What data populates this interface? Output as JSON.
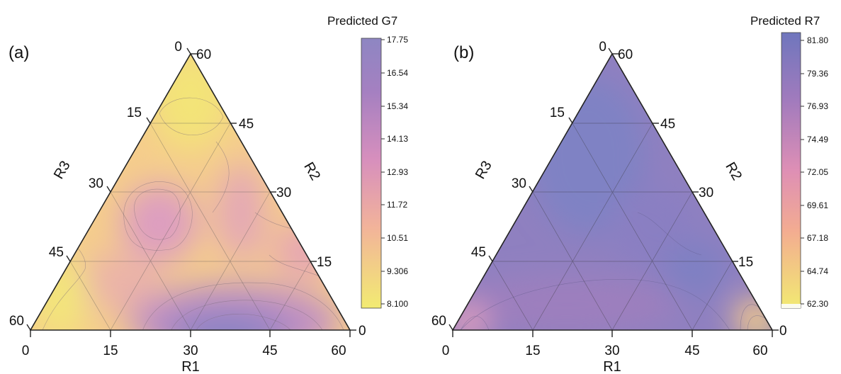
{
  "chart_data": [
    {
      "type": "heatmap",
      "panel_label": "(a)",
      "colorbar_title": "Predicted G7",
      "colorbar_ticks": [
        "17.75",
        "16.54",
        "15.34",
        "14.13",
        "12.93",
        "11.72",
        "10.51",
        "9.306",
        "8.100"
      ],
      "axes": [
        {
          "name": "R1",
          "ticks": [
            "0",
            "15",
            "30",
            "45",
            "60"
          ]
        },
        {
          "name": "R2",
          "ticks": [
            "0",
            "15",
            "30",
            "45",
            "60"
          ]
        },
        {
          "name": "R3",
          "ticks": [
            "0",
            "15",
            "30",
            "45",
            "60"
          ]
        }
      ],
      "colors": [
        "#f2eb72",
        "#f5c98a",
        "#e8a4b6",
        "#c48fc2",
        "#9f80c1",
        "#8e86c2"
      ]
    },
    {
      "type": "heatmap",
      "panel_label": "(b)",
      "colorbar_title": "Predicted R7",
      "colorbar_ticks": [
        "81.80",
        "79.36",
        "76.93",
        "74.49",
        "72.05",
        "69.61",
        "67.18",
        "64.74",
        "62.30"
      ],
      "axes": [
        {
          "name": "R1",
          "ticks": [
            "0",
            "15",
            "30",
            "45",
            "60"
          ]
        },
        {
          "name": "R2",
          "ticks": [
            "0",
            "15",
            "30",
            "45",
            "60"
          ]
        },
        {
          "name": "R3",
          "ticks": [
            "0",
            "15",
            "30",
            "45",
            "60"
          ]
        }
      ],
      "colors": [
        "#f2eb72",
        "#f5c98a",
        "#e8a4b6",
        "#c48fc2",
        "#9f80c1",
        "#8e86c2"
      ]
    }
  ]
}
